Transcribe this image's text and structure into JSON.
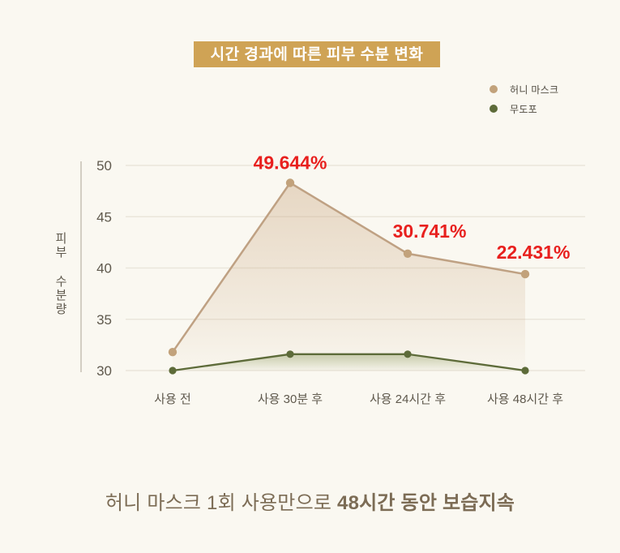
{
  "title": "시간 경과에 따른 피부 수분 변화",
  "legend": [
    {
      "label": "허니 마스크",
      "color": "#c2a27b"
    },
    {
      "label": "무도포",
      "color": "#5d6b39"
    }
  ],
  "caption": {
    "normal": "허니 마스크 1회 사용만으로 ",
    "bold": "48시간 동안 보습지속"
  },
  "chart_data": {
    "type": "line",
    "title": "시간 경과에 따른 피부 수분 변화",
    "ylabel": "피부 수분량",
    "xlabel": "",
    "categories": [
      "사용 전",
      "사용 30분 후",
      "사용 24시간 후",
      "사용 48시간 후"
    ],
    "series": [
      {
        "name": "허니 마스크",
        "color": "#bfa183",
        "point_color": "#c2a27b",
        "values": [
          31.8,
          48.3,
          41.4,
          39.4
        ],
        "point_labels": [
          "",
          "49.644%",
          "30.741%",
          "22.431%"
        ],
        "area": true
      },
      {
        "name": "무도포",
        "color": "#5d6b39",
        "point_color": "#5d6b39",
        "values": [
          30.0,
          31.6,
          31.6,
          30.0
        ],
        "point_labels": [
          "",
          "",
          "",
          ""
        ],
        "area": true
      }
    ],
    "ylim": [
      30,
      50
    ],
    "yticks": [
      30,
      35,
      40,
      45,
      50
    ],
    "grid": true,
    "legend_position": "top-right",
    "percent_label_color": "#e8201e"
  }
}
